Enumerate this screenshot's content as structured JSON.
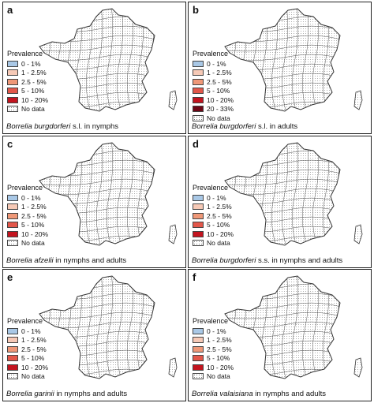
{
  "legend_title": "Prevalence",
  "palette": {
    "blue": "#a9c8e6",
    "c1": "#f6c9b6",
    "c2": "#ef9878",
    "c3": "#e2574a",
    "c4": "#c3141f",
    "c5": "#6d0716",
    "nodata": "#ffffff",
    "outline": "#333333"
  },
  "panels": [
    {
      "letter": "a",
      "caption_species": "Borrelia burgdorferi",
      "caption_rest": " s.l. in nymphs",
      "legend": [
        {
          "label": "0 - 1%",
          "color": "#a9c8e6"
        },
        {
          "label": "1 - 2.5%",
          "color": "#f6c9b6"
        },
        {
          "label": "2.5 - 5%",
          "color": "#ef9878"
        },
        {
          "label": "5 - 10%",
          "color": "#e2574a"
        },
        {
          "label": "10 - 20%",
          "color": "#c3141f"
        },
        {
          "label": "No data",
          "color": "nodata"
        }
      ]
    },
    {
      "letter": "b",
      "caption_species": "Borrelia burgdorferi",
      "caption_rest": " s.l. in adults",
      "legend": [
        {
          "label": "0 - 1%",
          "color": "#a9c8e6"
        },
        {
          "label": "1 - 2.5%",
          "color": "#f6c9b6"
        },
        {
          "label": "2.5 - 5%",
          "color": "#ef9878"
        },
        {
          "label": "5 - 10%",
          "color": "#e2574a"
        },
        {
          "label": "10 - 20%",
          "color": "#c3141f"
        },
        {
          "label": "20 - 33%",
          "color": "#6d0716"
        },
        {
          "label": "No data",
          "color": "nodata"
        }
      ]
    },
    {
      "letter": "c",
      "caption_species": "Borrelia afzelii",
      "caption_rest": " in nymphs and adults",
      "legend": [
        {
          "label": "0 - 1%",
          "color": "#a9c8e6"
        },
        {
          "label": "1 - 2.5%",
          "color": "#f6c9b6"
        },
        {
          "label": "2.5 - 5%",
          "color": "#ef9878"
        },
        {
          "label": "5 - 10%",
          "color": "#e2574a"
        },
        {
          "label": "10 - 20%",
          "color": "#c3141f"
        },
        {
          "label": "No data",
          "color": "nodata"
        }
      ]
    },
    {
      "letter": "d",
      "caption_species": "Borrelia burgdorferi",
      "caption_rest": " s.s. in nymphs and adults",
      "legend": [
        {
          "label": "0 - 1%",
          "color": "#a9c8e6"
        },
        {
          "label": "1 - 2.5%",
          "color": "#f6c9b6"
        },
        {
          "label": "2.5 - 5%",
          "color": "#ef9878"
        },
        {
          "label": "5 - 10%",
          "color": "#e2574a"
        },
        {
          "label": "10 - 20%",
          "color": "#c3141f"
        },
        {
          "label": "No data",
          "color": "nodata"
        }
      ]
    },
    {
      "letter": "e",
      "caption_species": "Borrelia garinii",
      "caption_rest": " in nymphs and adults",
      "legend": [
        {
          "label": "0 - 1%",
          "color": "#a9c8e6"
        },
        {
          "label": "1 - 2.5%",
          "color": "#f6c9b6"
        },
        {
          "label": "2.5 - 5%",
          "color": "#ef9878"
        },
        {
          "label": "5 - 10%",
          "color": "#e2574a"
        },
        {
          "label": "10 - 20%",
          "color": "#c3141f"
        },
        {
          "label": "No data",
          "color": "nodata"
        }
      ]
    },
    {
      "letter": "f",
      "caption_species": "Borrelia valaisiana",
      "caption_rest": " in nymphs and adults",
      "legend": [
        {
          "label": "0 - 1%",
          "color": "#a9c8e6"
        },
        {
          "label": "1 - 2.5%",
          "color": "#f6c9b6"
        },
        {
          "label": "2.5 - 5%",
          "color": "#ef9878"
        },
        {
          "label": "5 - 10%",
          "color": "#e2574a"
        },
        {
          "label": "10 - 20%",
          "color": "#c3141f"
        },
        {
          "label": "No data",
          "color": "nodata"
        }
      ]
    }
  ]
}
